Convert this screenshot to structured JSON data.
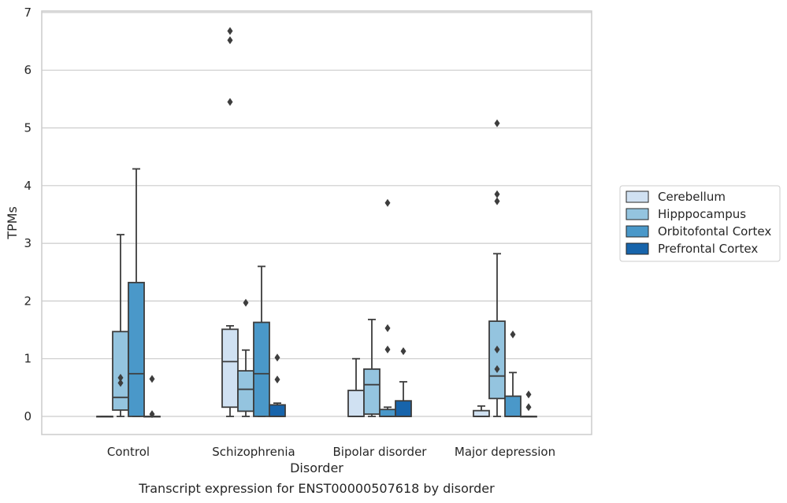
{
  "chart_data": {
    "type": "box",
    "xlabel": "Disorder",
    "ylabel": "TPMs",
    "caption": "Transcript expression for ENST00000507618 by disorder",
    "ylim": [
      -0.3,
      7.0
    ],
    "yticks": [
      "0",
      "1",
      "2",
      "3",
      "4",
      "5",
      "6",
      "7"
    ],
    "grid": "horizontal",
    "legend_position": "right",
    "categories": [
      "Control",
      "Schizophrenia",
      "Bipolar disorder",
      "Major depression"
    ],
    "series": [
      {
        "name": "Cerebellum",
        "color": "#d0e1f2",
        "boxes": [
          {
            "q1": 0,
            "median": 0,
            "q3": 0,
            "whislo": 0,
            "whishi": 0,
            "fliers": []
          },
          {
            "q1": 0.16,
            "median": 0.95,
            "q3": 1.51,
            "whislo": 0,
            "whishi": 1.57,
            "fliers": [
              5.45,
              6.52,
              6.68
            ]
          },
          {
            "q1": 0,
            "median": 0,
            "q3": 0.45,
            "whislo": 0,
            "whishi": 1.0,
            "fliers": []
          },
          {
            "q1": 0,
            "median": 0,
            "q3": 0.1,
            "whislo": 0,
            "whishi": 0.18,
            "fliers": []
          }
        ]
      },
      {
        "name": "Hipppocampus",
        "color": "#94c4df",
        "boxes": [
          {
            "q1": 0.11,
            "median": 0.33,
            "q3": 1.47,
            "whislo": 0,
            "whishi": 3.15,
            "fliers": [
              0.58,
              0.67
            ]
          },
          {
            "q1": 0.09,
            "median": 0.47,
            "q3": 0.79,
            "whislo": 0,
            "whishi": 1.15,
            "fliers": [
              1.97
            ]
          },
          {
            "q1": 0.04,
            "median": 0.55,
            "q3": 0.82,
            "whislo": 0,
            "whishi": 1.68,
            "fliers": []
          },
          {
            "q1": 0.31,
            "median": 0.7,
            "q3": 1.65,
            "whislo": 0,
            "whishi": 2.82,
            "fliers": [
              0.82,
              1.16,
              3.73,
              3.85,
              5.08
            ]
          }
        ]
      },
      {
        "name": "Orbitofontal Cortex",
        "color": "#4a98c9",
        "boxes": [
          {
            "q1": 0,
            "median": 0.74,
            "q3": 2.32,
            "whislo": 0,
            "whishi": 4.29,
            "fliers": []
          },
          {
            "q1": 0,
            "median": 0.74,
            "q3": 1.63,
            "whislo": 0,
            "whishi": 2.6,
            "fliers": []
          },
          {
            "q1": 0,
            "median": 0,
            "q3": 0.12,
            "whislo": 0,
            "whishi": 0.16,
            "fliers": [
              1.16,
              1.53,
              3.7
            ]
          },
          {
            "q1": 0,
            "median": 0,
            "q3": 0.35,
            "whislo": 0,
            "whishi": 0.76,
            "fliers": [
              1.42
            ]
          }
        ]
      },
      {
        "name": "Prefrontal Cortex",
        "color": "#1764ab",
        "boxes": [
          {
            "q1": 0,
            "median": 0,
            "q3": 0,
            "whislo": 0,
            "whishi": 0,
            "fliers": [
              0.04,
              0.65
            ]
          },
          {
            "q1": 0,
            "median": 0,
            "q3": 0.2,
            "whislo": 0,
            "whishi": 0.23,
            "fliers": [
              0.64,
              1.02
            ]
          },
          {
            "q1": 0,
            "median": 0,
            "q3": 0.27,
            "whislo": 0,
            "whishi": 0.6,
            "fliers": [
              1.13
            ]
          },
          {
            "q1": 0,
            "median": 0,
            "q3": 0,
            "whislo": 0,
            "whishi": 0,
            "fliers": [
              0.16,
              0.38
            ]
          }
        ]
      }
    ]
  }
}
